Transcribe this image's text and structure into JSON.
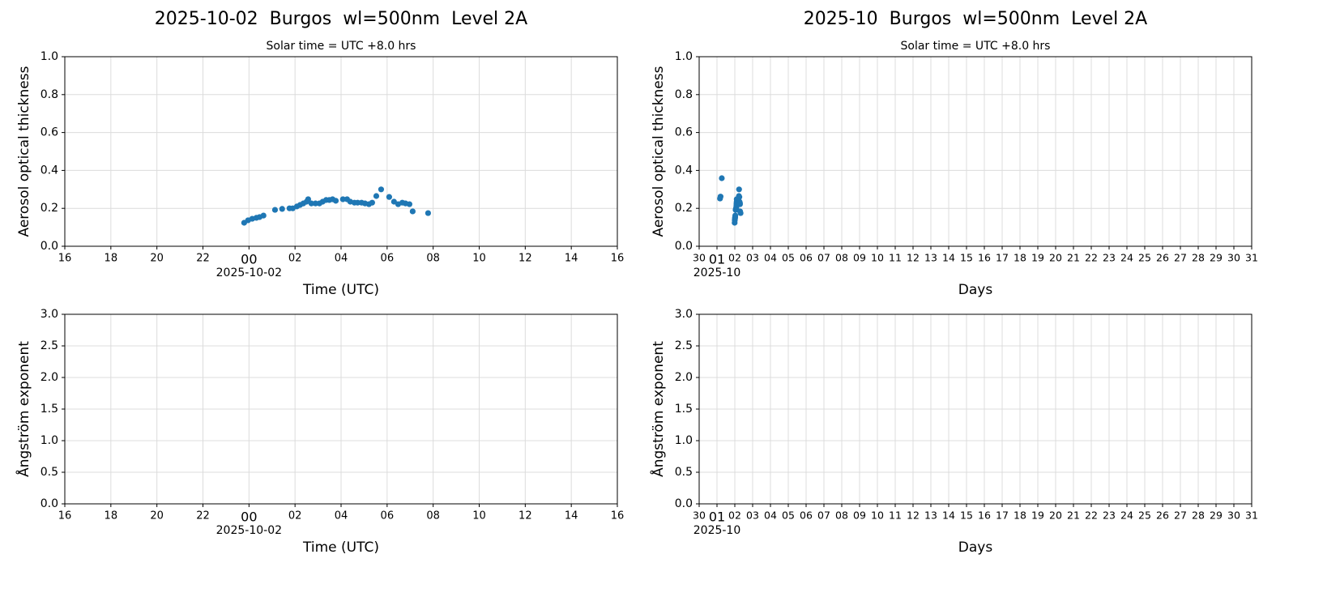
{
  "chart_data": [
    {
      "type": "scatter",
      "title": "2025-10-02  Burgos  wl=500nm  Level 2A",
      "subtitle": "Solar time = UTC +8.0 hrs",
      "xlabel": "Time (UTC)",
      "ylabel": "Aerosol optical thickness",
      "x_date_label": {
        "value": 0,
        "label": "2025-10-02"
      },
      "color": "#1f77b4",
      "grid": true,
      "xlim": [
        -8,
        16
      ],
      "xticks": [
        {
          "value": -8,
          "label": "16"
        },
        {
          "value": -6,
          "label": "18"
        },
        {
          "value": -4,
          "label": "20"
        },
        {
          "value": -2,
          "label": "22"
        },
        {
          "value": 0,
          "label": "00"
        },
        {
          "value": 2,
          "label": "02"
        },
        {
          "value": 4,
          "label": "04"
        },
        {
          "value": 6,
          "label": "06"
        },
        {
          "value": 8,
          "label": "08"
        },
        10,
        12,
        14,
        16
      ],
      "ylim": [
        0,
        1
      ],
      "yticks": [
        {
          "value": 0,
          "label": "0.0"
        },
        0.2,
        0.4,
        0.6,
        0.8,
        {
          "value": 1,
          "label": "1.0"
        }
      ],
      "x": [
        -0.21,
        -0.04,
        0.14,
        0.32,
        0.46,
        0.63,
        1.13,
        1.44,
        1.76,
        1.9,
        2.08,
        2.22,
        2.36,
        2.5,
        2.57,
        2.71,
        2.89,
        3.06,
        3.2,
        3.35,
        3.49,
        3.63,
        3.77,
        4.08,
        4.26,
        4.4,
        4.58,
        4.72,
        4.89,
        5.04,
        5.21,
        5.35,
        5.53,
        5.74,
        6.09,
        6.3,
        6.48,
        6.66,
        6.8,
        6.97,
        7.11,
        7.78
      ],
      "values": [
        0.124,
        0.137,
        0.145,
        0.15,
        0.154,
        0.162,
        0.192,
        0.197,
        0.2,
        0.2,
        0.21,
        0.218,
        0.226,
        0.235,
        0.248,
        0.226,
        0.226,
        0.226,
        0.235,
        0.244,
        0.244,
        0.248,
        0.24,
        0.248,
        0.248,
        0.235,
        0.23,
        0.23,
        0.23,
        0.226,
        0.222,
        0.23,
        0.265,
        0.3,
        0.26,
        0.235,
        0.222,
        0.23,
        0.226,
        0.222,
        0.184,
        0.175
      ]
    },
    {
      "type": "scatter",
      "title": "2025-10  Burgos  wl=500nm  Level 2A",
      "subtitle": "Solar time = UTC +8.0 hrs",
      "xlabel": "Days",
      "ylabel": "Aerosol optical thickness",
      "x_date_label": {
        "value": 1,
        "label": "2025-10"
      },
      "color": "#1f77b4",
      "grid": true,
      "xlim": [
        0,
        31
      ],
      "xticks": [
        {
          "value": 0,
          "label": "30"
        },
        {
          "value": 1,
          "label": "01"
        },
        {
          "value": 2,
          "label": "02"
        },
        {
          "value": 3,
          "label": "03"
        },
        {
          "value": 4,
          "label": "04"
        },
        {
          "value": 5,
          "label": "05"
        },
        {
          "value": 6,
          "label": "06"
        },
        {
          "value": 7,
          "label": "07"
        },
        {
          "value": 8,
          "label": "08"
        },
        {
          "value": 9,
          "label": "09"
        },
        10,
        11,
        12,
        13,
        14,
        15,
        16,
        17,
        18,
        19,
        20,
        21,
        22,
        23,
        24,
        25,
        26,
        27,
        28,
        29,
        30,
        31
      ],
      "ylim": [
        0,
        1
      ],
      "yticks": [
        {
          "value": 0,
          "label": "0.0"
        },
        0.2,
        0.4,
        0.6,
        0.8,
        {
          "value": 1,
          "label": "1.0"
        }
      ],
      "x": [
        1.17,
        1.2,
        1.27,
        1.991,
        1.998,
        2.006,
        2.013,
        2.019,
        2.026,
        2.047,
        2.06,
        2.073,
        2.079,
        2.087,
        2.093,
        2.098,
        2.104,
        2.107,
        2.113,
        2.12,
        2.128,
        2.133,
        2.14,
        2.145,
        2.151,
        2.157,
        2.17,
        2.178,
        2.183,
        2.191,
        2.197,
        2.204,
        2.21,
        2.217,
        2.223,
        2.23,
        2.239,
        2.254,
        2.263,
        2.27,
        2.278,
        2.283,
        2.29,
        2.296,
        2.324
      ],
      "values": [
        0.252,
        0.262,
        0.359,
        0.124,
        0.137,
        0.145,
        0.15,
        0.154,
        0.162,
        0.192,
        0.197,
        0.2,
        0.2,
        0.21,
        0.218,
        0.226,
        0.235,
        0.248,
        0.226,
        0.226,
        0.226,
        0.235,
        0.244,
        0.244,
        0.248,
        0.24,
        0.248,
        0.248,
        0.235,
        0.23,
        0.23,
        0.23,
        0.226,
        0.222,
        0.23,
        0.265,
        0.3,
        0.26,
        0.235,
        0.222,
        0.23,
        0.226,
        0.222,
        0.184,
        0.175
      ]
    },
    {
      "type": "scatter",
      "xlabel": "Time (UTC)",
      "ylabel": "Ångström exponent",
      "x_date_label": {
        "value": 0,
        "label": "2025-10-02"
      },
      "color": "#1f77b4",
      "grid": true,
      "xlim": [
        -8,
        16
      ],
      "xticks": [
        {
          "value": -8,
          "label": "16"
        },
        {
          "value": -6,
          "label": "18"
        },
        {
          "value": -4,
          "label": "20"
        },
        {
          "value": -2,
          "label": "22"
        },
        {
          "value": 0,
          "label": "00"
        },
        {
          "value": 2,
          "label": "02"
        },
        {
          "value": 4,
          "label": "04"
        },
        {
          "value": 6,
          "label": "06"
        },
        {
          "value": 8,
          "label": "08"
        },
        10,
        12,
        14,
        16
      ],
      "ylim": [
        0,
        3
      ],
      "yticks": [
        {
          "value": 0,
          "label": "0.0"
        },
        0.5,
        {
          "value": 1,
          "label": "1.0"
        },
        1.5,
        {
          "value": 2,
          "label": "2.0"
        },
        2.5,
        {
          "value": 3,
          "label": "3.0"
        }
      ]
    },
    {
      "type": "scatter",
      "xlabel": "Days",
      "ylabel": "Ångström exponent",
      "x_date_label": {
        "value": 1,
        "label": "2025-10"
      },
      "color": "#1f77b4",
      "grid": true,
      "xlim": [
        0,
        31
      ],
      "xticks": [
        {
          "value": 0,
          "label": "30"
        },
        {
          "value": 1,
          "label": "01"
        },
        {
          "value": 2,
          "label": "02"
        },
        {
          "value": 3,
          "label": "03"
        },
        {
          "value": 4,
          "label": "04"
        },
        {
          "value": 5,
          "label": "05"
        },
        {
          "value": 6,
          "label": "06"
        },
        {
          "value": 7,
          "label": "07"
        },
        {
          "value": 8,
          "label": "08"
        },
        {
          "value": 9,
          "label": "09"
        },
        10,
        11,
        12,
        13,
        14,
        15,
        16,
        17,
        18,
        19,
        20,
        21,
        22,
        23,
        24,
        25,
        26,
        27,
        28,
        29,
        30,
        31
      ],
      "ylim": [
        0,
        3
      ],
      "yticks": [
        {
          "value": 0,
          "label": "0.0"
        },
        0.5,
        {
          "value": 1,
          "label": "1.0"
        },
        1.5,
        {
          "value": 2,
          "label": "2.0"
        },
        2.5,
        {
          "value": 3,
          "label": "3.0"
        }
      ]
    }
  ]
}
